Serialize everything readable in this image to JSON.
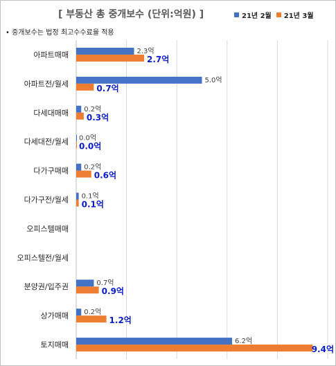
{
  "title": "[ 부동산 총 중개보수 (단위:억원) ]",
  "note": "• 중개보수는 법정 최고수수료율 적용",
  "colors": {
    "series1": "#4472C4",
    "series2": "#ED7D31",
    "label2": "#0A1FC8",
    "grid": "#D9D9D9"
  },
  "chart_data": {
    "type": "bar",
    "orientation": "horizontal",
    "title": "[ 부동산 총 중개보수 (단위:억원) ]",
    "categories": [
      "아파트매매",
      "아파트전/월세",
      "다세대매매",
      "다세대전/월세",
      "다가구매매",
      "다가구전/월세",
      "오피스텔매매",
      "오피스텔전/월세",
      "분양권/입주권",
      "상가매매",
      "토지매매"
    ],
    "series": [
      {
        "name": "21년 2월",
        "values": [
          2.3,
          5.0,
          0.2,
          0.0,
          0.2,
          0.1,
          null,
          null,
          0.7,
          0.2,
          6.2
        ],
        "labels": [
          "2.3억",
          "5.0억",
          "0.2억",
          "0.0억",
          "0.2억",
          "0.1억",
          "",
          "",
          "0.7억",
          "0.2억",
          "6.2억"
        ]
      },
      {
        "name": "21년 3월",
        "values": [
          2.7,
          0.7,
          0.3,
          0.0,
          0.6,
          0.1,
          null,
          null,
          0.9,
          1.2,
          9.4
        ],
        "labels": [
          "2.7억",
          "0.7억",
          "0.3억",
          "0.0억",
          "0.6억",
          "0.1억",
          "",
          "",
          "0.9억",
          "1.2억",
          "9.4억"
        ]
      }
    ],
    "xlim": [
      0,
      10
    ],
    "grid": true,
    "legend": "top-right"
  }
}
